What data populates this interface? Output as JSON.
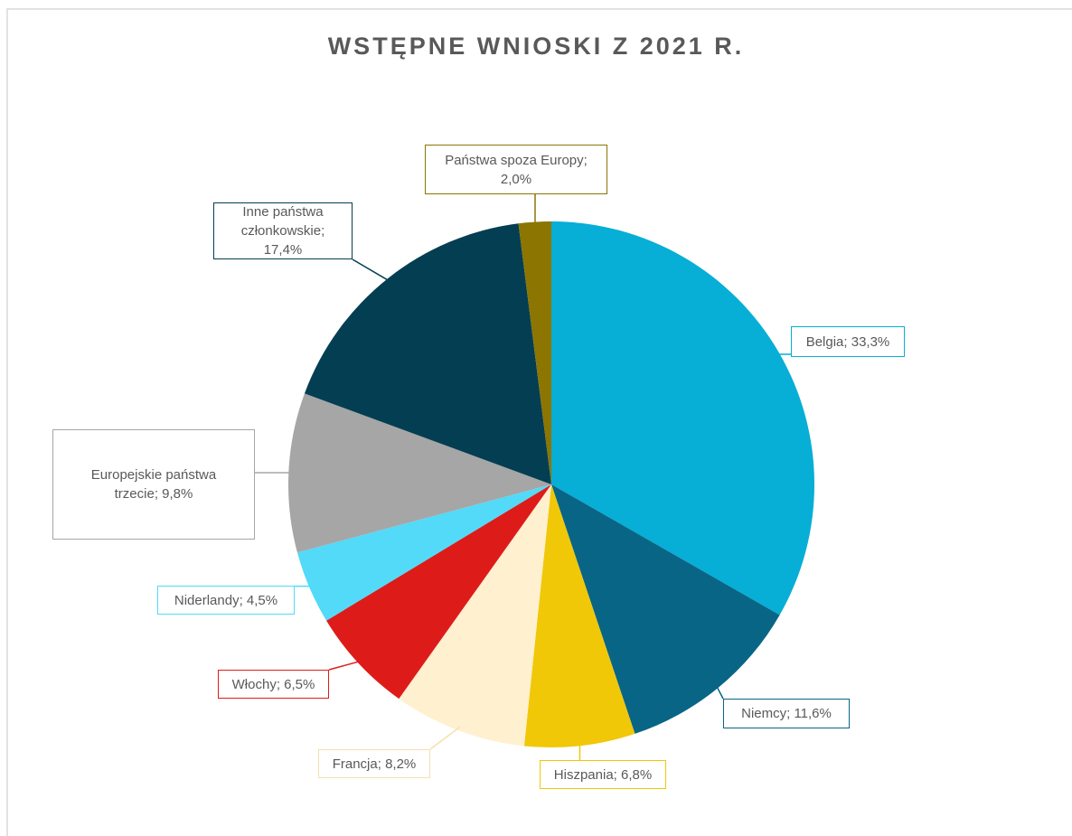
{
  "chart_data": {
    "type": "pie",
    "title": "WSTĘPNE WNIOSKI Z 2021 R.",
    "values": [
      33.3,
      11.6,
      6.8,
      8.2,
      6.5,
      4.5,
      9.8,
      17.4,
      2.0
    ],
    "value_labels": [
      "Belgia; 33,3%",
      "Niemcy; 11,6%",
      "Hiszpania; 6,8%",
      "Francja; 8,2%",
      "Włochy; 6,5%",
      "Niderlandy; 4,5%",
      "Europejskie państwa trzecie; 9,8%",
      "Inne państwa członkowskie; 17,4%",
      "Państwa spoza Europy; 2,0%"
    ],
    "colors": [
      "#07aed6",
      "#086586",
      "#f0c808",
      "#fff0cf",
      "#dd1c1a",
      "#52daf8",
      "#a6a6a6",
      "#043e52",
      "#8c7500"
    ]
  }
}
